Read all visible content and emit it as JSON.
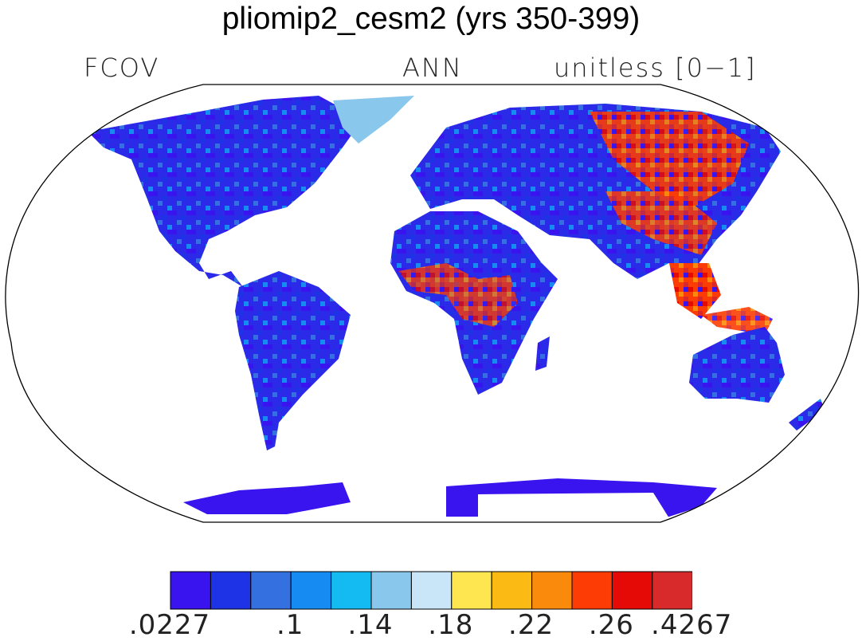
{
  "title": "pliomip2_cesm2 (yrs 350-399)",
  "variable": "FCOV",
  "season": "ANN",
  "units": "unitless [0−1]",
  "colorbar": {
    "colors": [
      "#3a14ee",
      "#1e33e6",
      "#3570e0",
      "#168cf3",
      "#14bbf2",
      "#8ac7ec",
      "#c9e6f8",
      "#fde64f",
      "#fbbb14",
      "#fa8a0b",
      "#fc3c04",
      "#e60a06",
      "#d82a2b"
    ],
    "labels": [
      ".0227",
      ".1",
      ".14",
      ".18",
      ".22",
      ".26",
      ".4267"
    ]
  },
  "map": {
    "projection": "Robinson",
    "ocean_color": "#ffffff",
    "coastline_color": "#000000"
  }
}
